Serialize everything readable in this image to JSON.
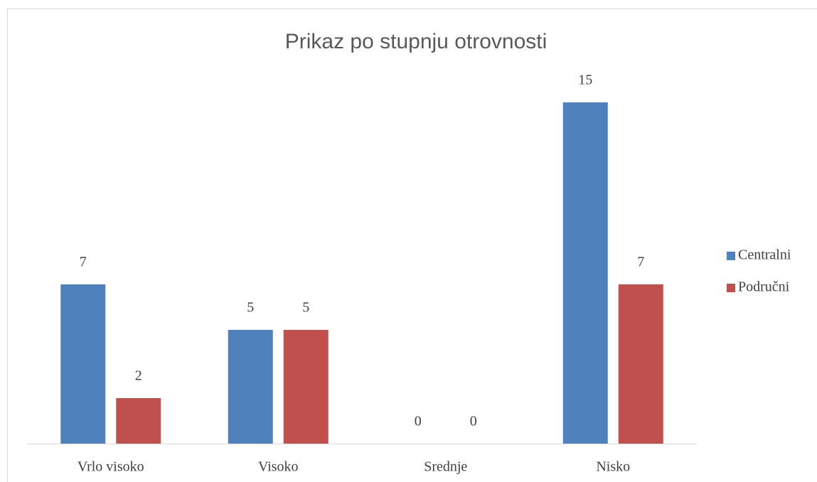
{
  "chart_data": {
    "type": "bar",
    "title": "Prikaz po stupnju otrovnosti",
    "categories": [
      "Vrlo visoko",
      "Visoko",
      "Srednje",
      "Nisko"
    ],
    "series": [
      {
        "name": "Centralni",
        "color": "#4f81bd",
        "values": [
          7,
          5,
          0,
          15
        ]
      },
      {
        "name": "Područni",
        "color": "#c0504d",
        "values": [
          2,
          5,
          0,
          7
        ]
      }
    ],
    "ylim": [
      0,
      15
    ],
    "legend": "right"
  }
}
